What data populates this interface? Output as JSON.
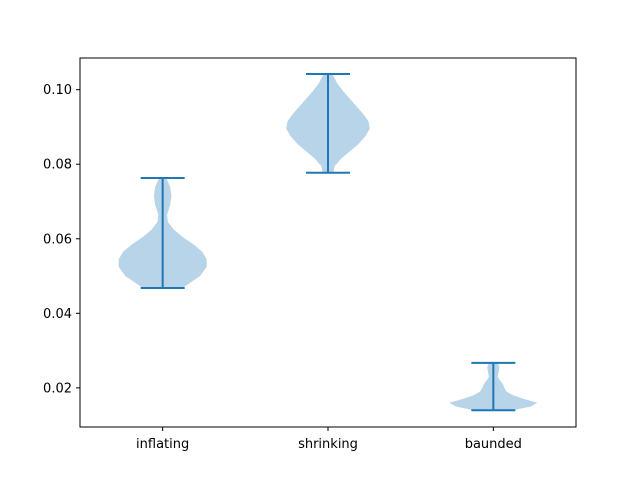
{
  "chart_data": {
    "type": "violin",
    "categories": [
      "inflating",
      "shrinking",
      "baunded"
    ],
    "series": [
      {
        "category": "inflating",
        "min": 0.0468,
        "max": 0.0763,
        "density_profile": [
          {
            "y": 0.0468,
            "w": 0.45
          },
          {
            "y": 0.048,
            "w": 0.6
          },
          {
            "y": 0.05,
            "w": 0.85
          },
          {
            "y": 0.0525,
            "w": 1.0
          },
          {
            "y": 0.0545,
            "w": 1.0
          },
          {
            "y": 0.0565,
            "w": 0.9
          },
          {
            "y": 0.0585,
            "w": 0.7
          },
          {
            "y": 0.0605,
            "w": 0.45
          },
          {
            "y": 0.0625,
            "w": 0.25
          },
          {
            "y": 0.0645,
            "w": 0.12
          },
          {
            "y": 0.0665,
            "w": 0.1
          },
          {
            "y": 0.069,
            "w": 0.17
          },
          {
            "y": 0.0715,
            "w": 0.2
          },
          {
            "y": 0.074,
            "w": 0.17
          },
          {
            "y": 0.0763,
            "w": 0.08
          }
        ]
      },
      {
        "category": "shrinking",
        "min": 0.0777,
        "max": 0.1042,
        "density_profile": [
          {
            "y": 0.0777,
            "w": 0.12
          },
          {
            "y": 0.0795,
            "w": 0.15
          },
          {
            "y": 0.0815,
            "w": 0.3
          },
          {
            "y": 0.0835,
            "w": 0.5
          },
          {
            "y": 0.0855,
            "w": 0.7
          },
          {
            "y": 0.0875,
            "w": 0.85
          },
          {
            "y": 0.0895,
            "w": 0.95
          },
          {
            "y": 0.0915,
            "w": 0.92
          },
          {
            "y": 0.0935,
            "w": 0.8
          },
          {
            "y": 0.0955,
            "w": 0.65
          },
          {
            "y": 0.0975,
            "w": 0.5
          },
          {
            "y": 0.0995,
            "w": 0.35
          },
          {
            "y": 0.1015,
            "w": 0.22
          },
          {
            "y": 0.103,
            "w": 0.15
          },
          {
            "y": 0.1042,
            "w": 0.1
          }
        ]
      },
      {
        "category": "baunded",
        "min": 0.014,
        "max": 0.0267,
        "density_profile": [
          {
            "y": 0.014,
            "w": 0.45
          },
          {
            "y": 0.015,
            "w": 0.85
          },
          {
            "y": 0.016,
            "w": 1.0
          },
          {
            "y": 0.017,
            "w": 0.7
          },
          {
            "y": 0.018,
            "w": 0.45
          },
          {
            "y": 0.019,
            "w": 0.3
          },
          {
            "y": 0.02,
            "w": 0.25
          },
          {
            "y": 0.021,
            "w": 0.22
          },
          {
            "y": 0.022,
            "w": 0.15
          },
          {
            "y": 0.023,
            "w": 0.1
          },
          {
            "y": 0.024,
            "w": 0.12
          },
          {
            "y": 0.0255,
            "w": 0.14
          },
          {
            "y": 0.0267,
            "w": 0.1
          }
        ]
      }
    ],
    "yticks": [
      0.02,
      0.04,
      0.06,
      0.08,
      0.1
    ],
    "ytick_labels": [
      "0.02",
      "0.04",
      "0.06",
      "0.08",
      "0.10"
    ],
    "ylim": [
      0.0095,
      0.1085
    ],
    "xlim": [
      0.5,
      3.5
    ],
    "title": "",
    "xlabel": "",
    "ylabel": "",
    "grid": false,
    "colors": {
      "violin_fill": "#b8d4e8",
      "line": "#1f77b4",
      "axes": "#000000"
    }
  }
}
